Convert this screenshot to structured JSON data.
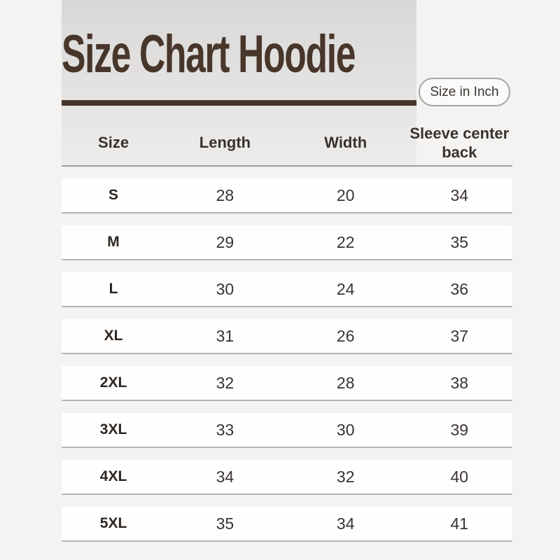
{
  "page": {
    "title": "Size Chart Hoodie",
    "unit_badge": "Size in Inch"
  },
  "chart_data": {
    "type": "table",
    "title": "Size Chart Hoodie",
    "unit": "inch",
    "columns": [
      "Size",
      "Length",
      "Width",
      "Sleeve center back"
    ],
    "rows": [
      [
        "S",
        28,
        20,
        34
      ],
      [
        "M",
        29,
        22,
        35
      ],
      [
        "L",
        30,
        24,
        36
      ],
      [
        "XL",
        31,
        26,
        37
      ],
      [
        "2XL",
        32,
        28,
        38
      ],
      [
        "3XL",
        33,
        30,
        39
      ],
      [
        "4XL",
        34,
        32,
        40
      ],
      [
        "5XL",
        35,
        34,
        41
      ]
    ]
  },
  "colors": {
    "accent_brown": "#46352a",
    "title_brown": "#48362a",
    "page_background": "#f4f3f2",
    "header_gradient_top": "#d9d8d8",
    "header_gradient_bottom": "#edeceb",
    "row_background": "#fefefe",
    "row_divider": "#b6b4b2",
    "header_divider": "#9f9d9b",
    "pill_border": "#a7a4a1"
  }
}
